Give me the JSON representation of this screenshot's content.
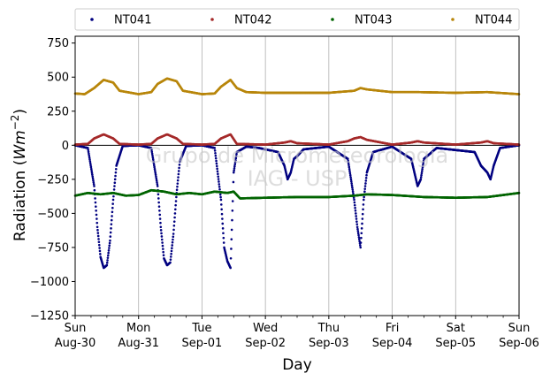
{
  "chart_data": {
    "type": "scatter",
    "xlabel": "Day",
    "ylabel_main": "Radiation (",
    "ylabel_unit": "Wm",
    "ylabel_exp": "−2",
    "ylabel_close": ")",
    "ylim": [
      -1250,
      800
    ],
    "xlim": [
      0,
      7
    ],
    "yticks": [
      {
        "v": 750,
        "label": "750"
      },
      {
        "v": 500,
        "label": "500"
      },
      {
        "v": 250,
        "label": "250"
      },
      {
        "v": 0,
        "label": "0"
      },
      {
        "v": -250,
        "label": "−250"
      },
      {
        "v": -500,
        "label": "−500"
      },
      {
        "v": -750,
        "label": "−750"
      },
      {
        "v": -1000,
        "label": "−1000"
      },
      {
        "v": -1250,
        "label": "−1250"
      }
    ],
    "xticks": [
      {
        "v": 0,
        "day": "Sun",
        "date": "Aug-30"
      },
      {
        "v": 1,
        "day": "Mon",
        "date": "Aug-31"
      },
      {
        "v": 2,
        "day": "Tue",
        "date": "Sep-01"
      },
      {
        "v": 3,
        "day": "Wed",
        "date": "Sep-02"
      },
      {
        "v": 4,
        "day": "Thu",
        "date": "Sep-03"
      },
      {
        "v": 5,
        "day": "Fri",
        "date": "Sep-04"
      },
      {
        "v": 6,
        "day": "Sat",
        "date": "Sep-05"
      },
      {
        "v": 7,
        "day": "Sun",
        "date": "Sep-06"
      }
    ],
    "watermark": [
      "Grupo de Micrometeorologia",
      "IAG - USP"
    ],
    "legend_position": "top",
    "grid": "vertical",
    "zero_line": true,
    "series": [
      {
        "name": "NT041",
        "color": "#000080",
        "points": [
          [
            0.0,
            0
          ],
          [
            0.2,
            -20
          ],
          [
            0.3,
            -300
          ],
          [
            0.35,
            -600
          ],
          [
            0.4,
            -820
          ],
          [
            0.45,
            -900
          ],
          [
            0.5,
            -880
          ],
          [
            0.55,
            -700
          ],
          [
            0.6,
            -400
          ],
          [
            0.65,
            -150
          ],
          [
            0.75,
            -5
          ],
          [
            1.0,
            0
          ],
          [
            1.2,
            -20
          ],
          [
            1.3,
            -300
          ],
          [
            1.35,
            -600
          ],
          [
            1.4,
            -830
          ],
          [
            1.45,
            -880
          ],
          [
            1.5,
            -860
          ],
          [
            1.55,
            -650
          ],
          [
            1.6,
            -350
          ],
          [
            1.65,
            -120
          ],
          [
            1.75,
            -5
          ],
          [
            2.0,
            0
          ],
          [
            2.2,
            -20
          ],
          [
            2.3,
            -400
          ],
          [
            2.35,
            -750
          ],
          [
            2.4,
            -850
          ],
          [
            2.45,
            -900
          ],
          [
            2.5,
            -200
          ],
          [
            2.55,
            -50
          ],
          [
            2.7,
            -10
          ],
          [
            2.9,
            -20
          ],
          [
            3.2,
            -50
          ],
          [
            3.3,
            -150
          ],
          [
            3.35,
            -250
          ],
          [
            3.4,
            -200
          ],
          [
            3.45,
            -100
          ],
          [
            3.5,
            -80
          ],
          [
            3.6,
            -30
          ],
          [
            4.0,
            -10
          ],
          [
            4.3,
            -100
          ],
          [
            4.35,
            -250
          ],
          [
            4.4,
            -400
          ],
          [
            4.45,
            -600
          ],
          [
            4.5,
            -750
          ],
          [
            4.55,
            -400
          ],
          [
            4.6,
            -200
          ],
          [
            4.7,
            -50
          ],
          [
            5.0,
            -10
          ],
          [
            5.3,
            -100
          ],
          [
            5.35,
            -200
          ],
          [
            5.4,
            -300
          ],
          [
            5.45,
            -250
          ],
          [
            5.5,
            -100
          ],
          [
            5.7,
            -20
          ],
          [
            6.3,
            -50
          ],
          [
            6.4,
            -150
          ],
          [
            6.5,
            -200
          ],
          [
            6.55,
            -250
          ],
          [
            6.6,
            -150
          ],
          [
            6.7,
            -20
          ],
          [
            7.0,
            0
          ]
        ]
      },
      {
        "name": "NT042",
        "color": "#a52a2a",
        "points": [
          [
            0.0,
            5
          ],
          [
            0.2,
            10
          ],
          [
            0.3,
            50
          ],
          [
            0.45,
            80
          ],
          [
            0.6,
            50
          ],
          [
            0.7,
            10
          ],
          [
            1.0,
            5
          ],
          [
            1.2,
            10
          ],
          [
            1.3,
            50
          ],
          [
            1.45,
            80
          ],
          [
            1.6,
            50
          ],
          [
            1.7,
            10
          ],
          [
            2.0,
            5
          ],
          [
            2.2,
            10
          ],
          [
            2.3,
            50
          ],
          [
            2.45,
            80
          ],
          [
            2.55,
            10
          ],
          [
            3.0,
            5
          ],
          [
            3.3,
            20
          ],
          [
            3.4,
            30
          ],
          [
            3.5,
            15
          ],
          [
            4.0,
            5
          ],
          [
            4.3,
            30
          ],
          [
            4.4,
            50
          ],
          [
            4.5,
            60
          ],
          [
            4.6,
            40
          ],
          [
            5.0,
            5
          ],
          [
            5.3,
            20
          ],
          [
            5.4,
            30
          ],
          [
            5.5,
            20
          ],
          [
            6.0,
            5
          ],
          [
            6.4,
            20
          ],
          [
            6.5,
            30
          ],
          [
            6.6,
            15
          ],
          [
            7.0,
            5
          ]
        ]
      },
      {
        "name": "NT043",
        "color": "#006400",
        "points": [
          [
            0.0,
            -370
          ],
          [
            0.2,
            -350
          ],
          [
            0.4,
            -360
          ],
          [
            0.6,
            -350
          ],
          [
            0.8,
            -370
          ],
          [
            1.0,
            -365
          ],
          [
            1.2,
            -330
          ],
          [
            1.4,
            -340
          ],
          [
            1.6,
            -360
          ],
          [
            1.8,
            -350
          ],
          [
            2.0,
            -360
          ],
          [
            2.2,
            -340
          ],
          [
            2.4,
            -350
          ],
          [
            2.5,
            -340
          ],
          [
            2.6,
            -390
          ],
          [
            3.0,
            -385
          ],
          [
            3.5,
            -380
          ],
          [
            4.0,
            -380
          ],
          [
            4.4,
            -370
          ],
          [
            4.6,
            -360
          ],
          [
            5.0,
            -365
          ],
          [
            5.5,
            -380
          ],
          [
            6.0,
            -385
          ],
          [
            6.5,
            -380
          ],
          [
            7.0,
            -350
          ]
        ]
      },
      {
        "name": "NT044",
        "color": "#b8860b",
        "points": [
          [
            0.0,
            380
          ],
          [
            0.15,
            375
          ],
          [
            0.3,
            420
          ],
          [
            0.45,
            480
          ],
          [
            0.6,
            460
          ],
          [
            0.7,
            400
          ],
          [
            1.0,
            375
          ],
          [
            1.2,
            390
          ],
          [
            1.3,
            450
          ],
          [
            1.45,
            490
          ],
          [
            1.6,
            470
          ],
          [
            1.7,
            400
          ],
          [
            2.0,
            375
          ],
          [
            2.2,
            380
          ],
          [
            2.3,
            430
          ],
          [
            2.45,
            480
          ],
          [
            2.55,
            420
          ],
          [
            2.7,
            390
          ],
          [
            3.0,
            385
          ],
          [
            3.5,
            385
          ],
          [
            4.0,
            385
          ],
          [
            4.4,
            400
          ],
          [
            4.5,
            420
          ],
          [
            4.6,
            410
          ],
          [
            5.0,
            390
          ],
          [
            5.4,
            390
          ],
          [
            6.0,
            385
          ],
          [
            6.5,
            390
          ],
          [
            7.0,
            375
          ]
        ]
      }
    ]
  }
}
